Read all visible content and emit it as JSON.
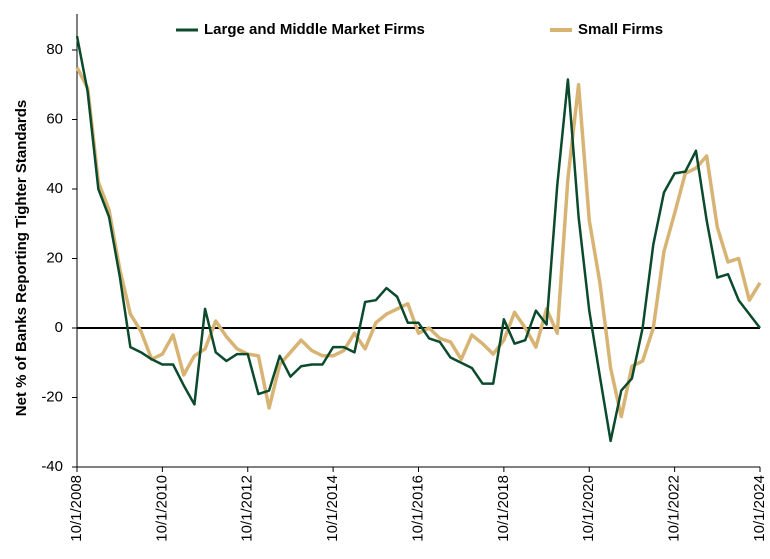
{
  "chart_data": {
    "type": "line",
    "ylabel": "Net % of Banks Reporting Tighter Standards",
    "categories": [
      "10/1/2008",
      null,
      null,
      null,
      null,
      null,
      null,
      null,
      "10/1/2010",
      null,
      null,
      null,
      null,
      null,
      null,
      null,
      "10/1/2012",
      null,
      null,
      null,
      null,
      null,
      null,
      null,
      "10/1/2014",
      null,
      null,
      null,
      null,
      null,
      null,
      null,
      "10/1/2016",
      null,
      null,
      null,
      null,
      null,
      null,
      null,
      "10/1/2018",
      null,
      null,
      null,
      null,
      null,
      null,
      null,
      "10/1/2020",
      null,
      null,
      null,
      null,
      null,
      null,
      null,
      "10/1/2022",
      null,
      null,
      null,
      null,
      null,
      null,
      null,
      "10/1/2024"
    ],
    "series": [
      {
        "name": "Large and Middle Market Firms",
        "color": "#0b4a2c",
        "values": [
          84,
          68,
          40,
          32,
          15,
          -5.5,
          -7,
          -9,
          -10.5,
          -10.5,
          -16.5,
          -22,
          5.5,
          -7,
          -9.5,
          -7.5,
          -7.5,
          -19,
          -18,
          -8,
          -14,
          -11,
          -10.5,
          -10.5,
          -5.5,
          -5.5,
          -7,
          7.5,
          8,
          11.5,
          9,
          1.5,
          1.5,
          -3,
          -4,
          -8.5,
          -10,
          -11.5,
          -16,
          -16,
          2.5,
          -4.5,
          -3.5,
          5,
          1,
          41,
          71.5,
          32,
          5,
          -14,
          -32.5,
          -18,
          -14.5,
          0,
          24,
          39,
          44.5,
          45,
          51,
          31,
          14.5,
          15.5,
          8,
          4,
          0
        ]
      },
      {
        "name": "Small Firms",
        "color": "#d8b474",
        "values": [
          75,
          69,
          42,
          34,
          17,
          4,
          -1,
          -9,
          -7.5,
          -2,
          -13.5,
          -8,
          -6,
          2,
          -2.5,
          -6,
          -7.5,
          -8,
          -23,
          -10.5,
          -7,
          -3.5,
          -6.5,
          -8,
          -8,
          -6.5,
          -1.5,
          -6,
          1.5,
          4,
          5.5,
          7,
          -1.5,
          0,
          -3,
          -4,
          -9,
          -2,
          -4.5,
          -7.5,
          -3.5,
          4.5,
          0,
          -5.5,
          5.5,
          -1.5,
          43,
          70,
          31,
          13,
          -11.5,
          -25.5,
          -11,
          -9.5,
          0,
          22,
          33,
          44.5,
          46,
          49.5,
          29,
          19,
          20,
          8,
          13
        ]
      }
    ],
    "ylim": [
      -40,
      90
    ],
    "yticks": [
      -40,
      -20,
      0,
      20,
      40,
      60,
      80
    ],
    "grid": false,
    "legend": "top"
  }
}
